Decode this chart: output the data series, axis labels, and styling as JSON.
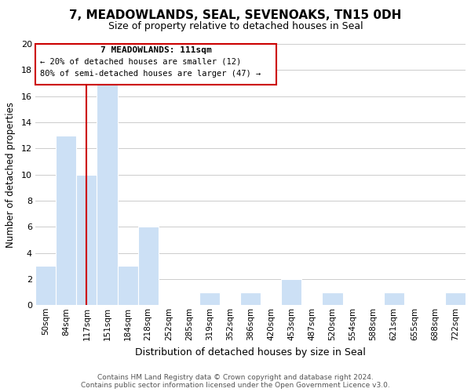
{
  "title": "7, MEADOWLANDS, SEAL, SEVENOAKS, TN15 0DH",
  "subtitle": "Size of property relative to detached houses in Seal",
  "xlabel": "Distribution of detached houses by size in Seal",
  "ylabel": "Number of detached properties",
  "bin_labels": [
    "50sqm",
    "84sqm",
    "117sqm",
    "151sqm",
    "184sqm",
    "218sqm",
    "252sqm",
    "285sqm",
    "319sqm",
    "352sqm",
    "386sqm",
    "420sqm",
    "453sqm",
    "487sqm",
    "520sqm",
    "554sqm",
    "588sqm",
    "621sqm",
    "655sqm",
    "688sqm",
    "722sqm"
  ],
  "bar_heights": [
    3,
    13,
    10,
    17,
    3,
    6,
    0,
    0,
    1,
    0,
    1,
    0,
    2,
    0,
    1,
    0,
    0,
    1,
    0,
    0,
    1
  ],
  "bar_color": "#cce0f5",
  "bar_edge_color": "#aaccee",
  "grid_color": "#cccccc",
  "vline_x_idx": 2,
  "vline_color": "#cc0000",
  "annotation_title": "7 MEADOWLANDS: 111sqm",
  "annotation_line1": "← 20% of detached houses are smaller (12)",
  "annotation_line2": "80% of semi-detached houses are larger (47) →",
  "annotation_box_edge": "#cc0000",
  "ylim": [
    0,
    20
  ],
  "yticks": [
    0,
    2,
    4,
    6,
    8,
    10,
    12,
    14,
    16,
    18,
    20
  ],
  "footer1": "Contains HM Land Registry data © Crown copyright and database right 2024.",
  "footer2": "Contains public sector information licensed under the Open Government Licence v3.0.",
  "title_fontsize": 11,
  "subtitle_fontsize": 9
}
